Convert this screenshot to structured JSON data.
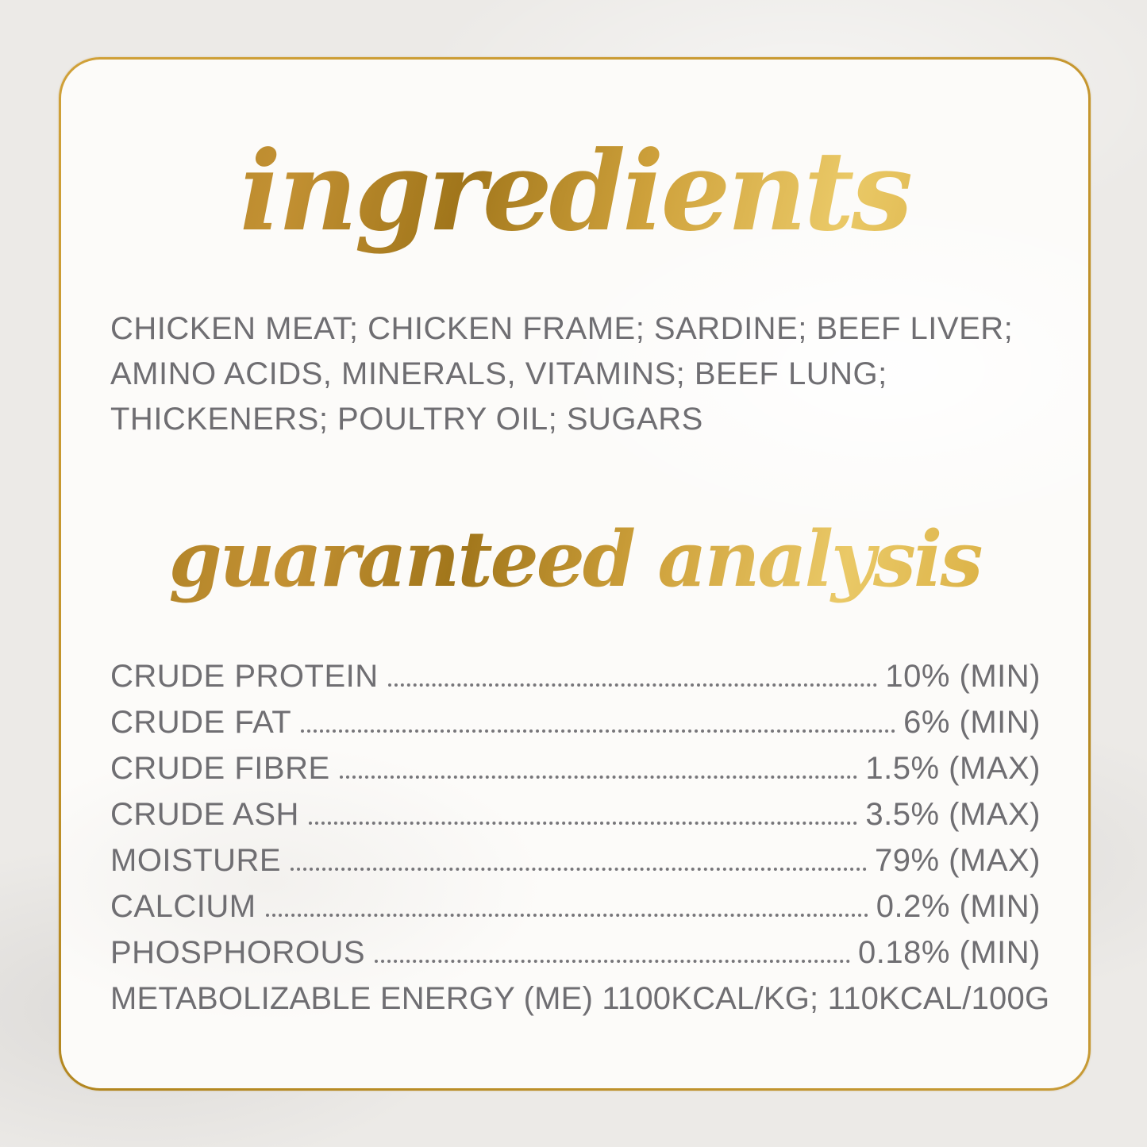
{
  "label": {
    "ingredients": {
      "title": "ingredients",
      "text": "CHICKEN MEAT; CHICKEN FRAME; SARDINE; BEEF LIVER; AMINO ACIDS, MINERALS, VITAMINS; BEEF LUNG; THICKENERS; POULTRY OIL; SUGARS"
    },
    "guaranteed_analysis": {
      "title": "guaranteed analysis",
      "rows": [
        {
          "label": "CRUDE PROTEIN",
          "value": "10% (MIN)"
        },
        {
          "label": "CRUDE FAT",
          "value": "6% (MIN)"
        },
        {
          "label": "CRUDE FIBRE",
          "value": "1.5% (MAX)"
        },
        {
          "label": "CRUDE ASH",
          "value": "3.5% (MAX)"
        },
        {
          "label": "MOISTURE",
          "value": "79% (MAX)"
        },
        {
          "label": "CALCIUM",
          "value": "0.2% (MIN)"
        },
        {
          "label": "PHOSPHOROUS",
          "value": "0.18% (MIN)"
        }
      ],
      "footer": "METABOLIZABLE ENERGY (ME) 1100KCAL/KG; 110KCAL/100G"
    },
    "colors": {
      "gold_foil_dark": "#a1761b",
      "gold_foil_mid": "#c3943a",
      "gold_foil_light": "#eac967",
      "border_gold": "#c5962e",
      "text_gray": "#6f6e72",
      "card_background": "#fcfbf9",
      "page_background": "#eceae7"
    }
  }
}
